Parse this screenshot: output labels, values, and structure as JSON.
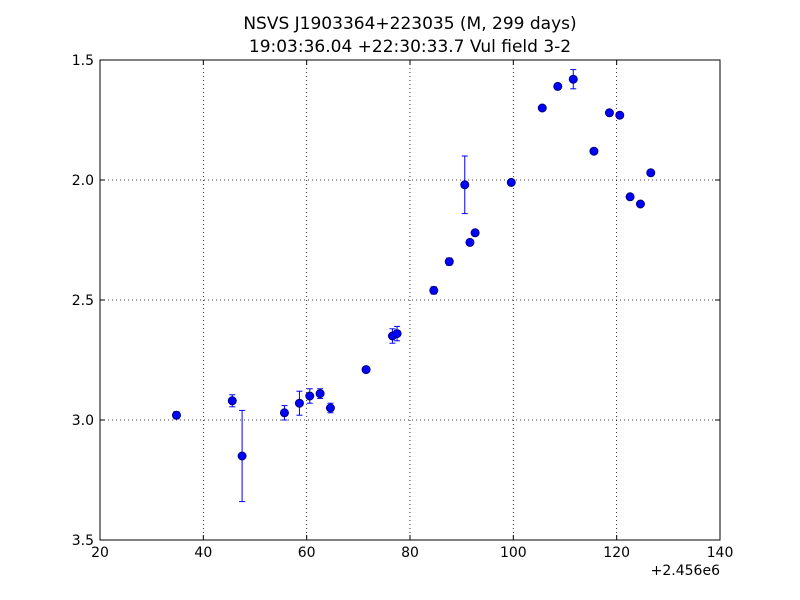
{
  "chart_data": {
    "type": "scatter",
    "title": "NSVS J1903364+223035 (M, 299 days)",
    "subtitle": "19:03:36.04 +22:30:33.7 Vul field 3-2",
    "xlabel": "",
    "ylabel": "",
    "x_offset_label": "+2.456e6",
    "xlim": [
      20,
      140
    ],
    "ylim": [
      3.5,
      1.5
    ],
    "y_inverted": true,
    "grid": true,
    "x_ticks": [
      20,
      40,
      60,
      80,
      100,
      120,
      140
    ],
    "x_tick_labels": [
      "20",
      "40",
      "60",
      "80",
      "100",
      "120",
      "140"
    ],
    "y_ticks": [
      1.5,
      2.0,
      2.5,
      3.0,
      3.5
    ],
    "y_tick_labels": [
      "1.5",
      "2.0",
      "2.5",
      "3.0",
      "3.5"
    ],
    "marker_color": "#0000ff",
    "marker_edge_color": "#000080",
    "points": [
      {
        "x": 34.8,
        "y": 2.98,
        "err": 0.015
      },
      {
        "x": 45.6,
        "y": 2.92,
        "err": 0.025
      },
      {
        "x": 47.5,
        "y": 3.15,
        "err": 0.19
      },
      {
        "x": 55.7,
        "y": 2.97,
        "err": 0.03
      },
      {
        "x": 58.6,
        "y": 2.93,
        "err": 0.05
      },
      {
        "x": 60.6,
        "y": 2.9,
        "err": 0.03
      },
      {
        "x": 62.6,
        "y": 2.89,
        "err": 0.02
      },
      {
        "x": 64.6,
        "y": 2.95,
        "err": 0.02
      },
      {
        "x": 71.5,
        "y": 2.79,
        "err": 0.01
      },
      {
        "x": 76.6,
        "y": 2.65,
        "err": 0.03
      },
      {
        "x": 77.5,
        "y": 2.64,
        "err": 0.03
      },
      {
        "x": 84.6,
        "y": 2.46,
        "err": 0.015
      },
      {
        "x": 87.6,
        "y": 2.34,
        "err": 0.015
      },
      {
        "x": 90.6,
        "y": 2.02,
        "err": 0.12
      },
      {
        "x": 91.6,
        "y": 2.26,
        "err": 0.01
      },
      {
        "x": 92.6,
        "y": 2.22,
        "err": 0.01
      },
      {
        "x": 99.6,
        "y": 2.01,
        "err": 0.01
      },
      {
        "x": 105.6,
        "y": 1.7,
        "err": 0.01
      },
      {
        "x": 108.6,
        "y": 1.61,
        "err": 0.01
      },
      {
        "x": 111.6,
        "y": 1.58,
        "err": 0.04
      },
      {
        "x": 115.6,
        "y": 1.88,
        "err": 0.01
      },
      {
        "x": 118.6,
        "y": 1.72,
        "err": 0.01
      },
      {
        "x": 120.6,
        "y": 1.73,
        "err": 0.01
      },
      {
        "x": 122.6,
        "y": 2.07,
        "err": 0.01
      },
      {
        "x": 124.6,
        "y": 2.1,
        "err": 0.01
      },
      {
        "x": 126.6,
        "y": 1.97,
        "err": 0.01
      }
    ]
  }
}
